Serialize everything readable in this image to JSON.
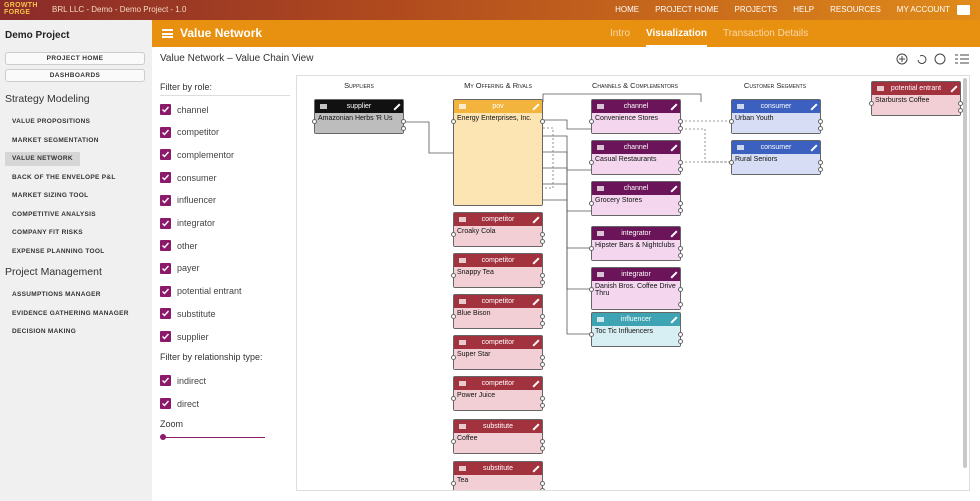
{
  "top_bar": {
    "logo_line1": "GROWTH",
    "logo_line2": "FORGE",
    "project_label": "BRL LLC - Demo - Demo Project - 1.0",
    "nav": [
      "HOME",
      "PROJECT HOME",
      "PROJECTS",
      "HELP",
      "RESOURCES",
      "MY ACCOUNT"
    ]
  },
  "sidebar": {
    "project": "Demo Project",
    "buttons": [
      "PROJECT HOME",
      "DASHBOARDS"
    ],
    "sections": [
      {
        "title": "Strategy Modeling",
        "items": [
          {
            "label": "VALUE PROPOSITIONS"
          },
          {
            "label": "MARKET SEGMENTATION"
          },
          {
            "label": "VALUE NETWORK",
            "active": true
          },
          {
            "label": "BACK OF THE ENVELOPE P&L"
          },
          {
            "label": "MARKET SIZING TOOL"
          },
          {
            "label": "COMPETITIVE ANALYSIS"
          },
          {
            "label": "COMPANY FIT RISKS"
          },
          {
            "label": "EXPENSE PLANNING TOOL"
          }
        ]
      },
      {
        "title": "Project Management",
        "items": [
          {
            "label": "ASSUMPTIONS MANAGER"
          },
          {
            "label": "EVIDENCE GATHERING MANAGER"
          },
          {
            "label": "DECISION MAKING"
          }
        ]
      }
    ]
  },
  "header": {
    "title": "Value Network",
    "tabs": [
      {
        "label": "Intro"
      },
      {
        "label": "Visualization",
        "active": true
      },
      {
        "label": "Transaction Details"
      }
    ]
  },
  "subheader": {
    "title": "Value Network – Value Chain View"
  },
  "filters": {
    "role_title": "Filter by role:",
    "roles": [
      "channel",
      "competitor",
      "complementor",
      "consumer",
      "influencer",
      "integrator",
      "other",
      "payer",
      "potential entrant",
      "substitute",
      "supplier"
    ],
    "relationship_title": "Filter by relationship type:",
    "relationships": [
      "indirect",
      "direct"
    ],
    "zoom_label": "Zoom"
  },
  "canvas": {
    "columns": [
      "Suppliers",
      "My Offering & Rivals",
      "Channels & Complementors",
      "Customer Segments"
    ],
    "nodes": [
      {
        "role": "supplier",
        "name": "Amazonian Herbs 'R Us"
      },
      {
        "role": "pov",
        "name": "Energy Enterprises, Inc."
      },
      {
        "role": "competitor",
        "name": "Croaky Cola"
      },
      {
        "role": "competitor",
        "name": "Snappy Tea"
      },
      {
        "role": "competitor",
        "name": "Blue Bison"
      },
      {
        "role": "competitor",
        "name": "Super Star"
      },
      {
        "role": "competitor",
        "name": "Power Juice"
      },
      {
        "role": "substitute",
        "name": "Coffee"
      },
      {
        "role": "substitute",
        "name": "Tea"
      },
      {
        "role": "channel",
        "name": "Convenience Stores"
      },
      {
        "role": "channel",
        "name": "Casual Restaurants"
      },
      {
        "role": "channel",
        "name": "Grocery Stores"
      },
      {
        "role": "integrator",
        "name": "Hipster Bars & Nightclubs"
      },
      {
        "role": "integrator",
        "name": "Danish Bros. Coffee Drive Thru"
      },
      {
        "role": "influencer",
        "name": "Toc Tic Influencers"
      },
      {
        "role": "consumer",
        "name": "Urban Youth"
      },
      {
        "role": "consumer",
        "name": "Rural Seniors"
      },
      {
        "role": "potential entrant",
        "name": "Starbursts Coffee"
      }
    ]
  }
}
